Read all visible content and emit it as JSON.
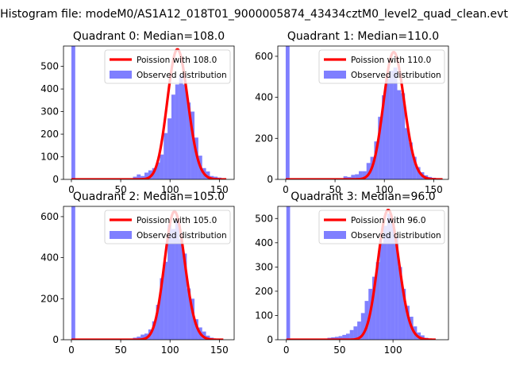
{
  "figure": {
    "suptitle": "Histogram file: modeM0/AS1A12_018T01_9000005874_43434cztM0_level2_quad_clean.evt"
  },
  "colors": {
    "observed": "#0000ff",
    "observed_opacity": 0.5,
    "poisson": "#ff0000"
  },
  "chart_data": [
    {
      "type": "bar",
      "title": "Quadrant 0: Median=108.0",
      "median": 108.0,
      "xlim": [
        -8,
        165
      ],
      "ylim": [
        0,
        590
      ],
      "xticks": [
        0,
        50,
        100,
        150
      ],
      "yticks": [
        0,
        100,
        200,
        300,
        400,
        500
      ],
      "legend_position": "upper right",
      "series": [
        {
          "name": "Poission with 108.0",
          "kind": "line",
          "lambda": 108.0,
          "x_range": [
            0,
            157
          ],
          "scale": 575
        },
        {
          "name": "Observed distribution",
          "kind": "histogram",
          "bin_width": 3.9,
          "bins_x": [
            0,
            62.4,
            66.3,
            70.2,
            74.1,
            78,
            81.9,
            85.8,
            89.7,
            93.6,
            97.5,
            101.4,
            105.3,
            109.2,
            113.1,
            117,
            120.9,
            124.8,
            128.7,
            132.6,
            136.5,
            140.4,
            144.3,
            148.2,
            152.1
          ],
          "counts": [
            590,
            12,
            22,
            15,
            30,
            40,
            50,
            75,
            110,
            205,
            270,
            375,
            420,
            460,
            420,
            340,
            300,
            185,
            105,
            50,
            35,
            15,
            12,
            8,
            3
          ]
        }
      ]
    },
    {
      "type": "bar",
      "title": "Quadrant 1: Median=110.0",
      "median": 110.0,
      "xlim": [
        -8,
        165
      ],
      "ylim": [
        0,
        650
      ],
      "xticks": [
        0,
        50,
        100,
        150
      ],
      "yticks": [
        0,
        200,
        400,
        600
      ],
      "legend_position": "upper right",
      "series": [
        {
          "name": "Poission with 110.0",
          "kind": "line",
          "lambda": 110.0,
          "x_range": [
            0,
            159
          ],
          "scale": 620
        },
        {
          "name": "Observed distribution",
          "kind": "histogram",
          "bin_width": 3.9,
          "bins_x": [
            0,
            58.5,
            62.4,
            66.3,
            70.2,
            74.1,
            78,
            81.9,
            85.8,
            89.7,
            93.6,
            97.5,
            101.4,
            105.3,
            109.2,
            113.1,
            117,
            120.9,
            124.8,
            128.7,
            132.6,
            136.5,
            140.4,
            144.3,
            148.2,
            152.1
          ],
          "counts": [
            650,
            15,
            12,
            22,
            25,
            40,
            40,
            80,
            110,
            185,
            305,
            410,
            490,
            530,
            545,
            435,
            420,
            250,
            180,
            110,
            60,
            35,
            20,
            12,
            8,
            3
          ]
        }
      ]
    },
    {
      "type": "bar",
      "title": "Quadrant 2: Median=105.0",
      "median": 105.0,
      "xlim": [
        -8,
        165
      ],
      "ylim": [
        0,
        650
      ],
      "xticks": [
        0,
        50,
        100,
        150
      ],
      "yticks": [
        0,
        200,
        400,
        600
      ],
      "legend_position": "upper right",
      "series": [
        {
          "name": "Poission with 105.0",
          "kind": "line",
          "lambda": 105.0,
          "x_range": [
            0,
            154
          ],
          "scale": 625
        },
        {
          "name": "Observed distribution",
          "kind": "histogram",
          "bin_width": 3.9,
          "bins_x": [
            0,
            62.4,
            66.3,
            70.2,
            74.1,
            78,
            81.9,
            85.8,
            89.7,
            93.6,
            97.5,
            101.4,
            105.3,
            109.2,
            113.1,
            117,
            120.9,
            124.8,
            128.7,
            132.6,
            136.5,
            140.4,
            144.3,
            148.2
          ],
          "counts": [
            650,
            10,
            15,
            25,
            30,
            50,
            90,
            170,
            300,
            380,
            560,
            540,
            580,
            490,
            420,
            250,
            200,
            100,
            60,
            40,
            20,
            10,
            5,
            3
          ]
        }
      ]
    },
    {
      "type": "bar",
      "title": "Quadrant 3: Median=96.0",
      "median": 96.0,
      "xlim": [
        -8,
        152
      ],
      "ylim": [
        0,
        550
      ],
      "xticks": [
        0,
        50,
        100
      ],
      "yticks": [
        0,
        100,
        200,
        300,
        400,
        500
      ],
      "legend_position": "upper right",
      "series": [
        {
          "name": "Poission with 96.0",
          "kind": "line",
          "lambda": 96.0,
          "x_range": [
            0,
            140
          ],
          "scale": 535
        },
        {
          "name": "Observed distribution",
          "kind": "histogram",
          "bin_width": 3.5,
          "bins_x": [
            0,
            35,
            38.5,
            42,
            45.5,
            49,
            52.5,
            56,
            59.5,
            63,
            66.5,
            70,
            73.5,
            77,
            80.5,
            84,
            87.5,
            91,
            94.5,
            98,
            101.5,
            105,
            108.5,
            112,
            115.5,
            119,
            122.5,
            126,
            129.5
          ],
          "counts": [
            550,
            5,
            8,
            10,
            12,
            15,
            20,
            25,
            40,
            55,
            75,
            110,
            160,
            210,
            260,
            320,
            400,
            470,
            520,
            480,
            420,
            300,
            210,
            140,
            95,
            55,
            30,
            18,
            8
          ]
        }
      ]
    }
  ]
}
